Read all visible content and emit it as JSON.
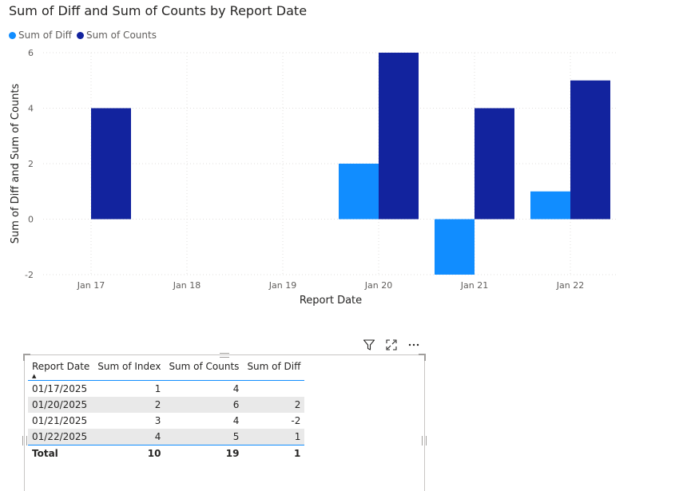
{
  "chart_data": {
    "type": "bar",
    "title": "Sum of Diff and Sum of Counts by Report Date",
    "xlabel": "Report Date",
    "ylabel": "Sum of Diff and Sum of Counts",
    "categories": [
      "Jan 17",
      "Jan 18",
      "Jan 19",
      "Jan 20",
      "Jan 21",
      "Jan 22"
    ],
    "series": [
      {
        "name": "Sum of Diff",
        "color": "#118dff",
        "values": [
          null,
          null,
          null,
          2,
          -2,
          1
        ]
      },
      {
        "name": "Sum of Counts",
        "color": "#12239e",
        "values": [
          4,
          null,
          null,
          6,
          4,
          5
        ]
      }
    ],
    "yticks": [
      "6",
      "4",
      "2",
      "0",
      "-2"
    ],
    "ylim": [
      -2,
      6
    ],
    "grid": true,
    "legend": "top-left"
  },
  "table": {
    "columns": [
      "Report Date",
      "Sum of Index",
      "Sum of Counts",
      "Sum of Diff"
    ],
    "rows": [
      [
        "01/17/2025",
        "1",
        "4",
        ""
      ],
      [
        "01/20/2025",
        "2",
        "6",
        "2"
      ],
      [
        "01/21/2025",
        "3",
        "4",
        "-2"
      ],
      [
        "01/22/2025",
        "4",
        "5",
        "1"
      ]
    ],
    "total": [
      "Total",
      "10",
      "19",
      "1"
    ],
    "sort_indicator": "▲"
  },
  "visual_header": {
    "icons": [
      "filter-icon",
      "focus-mode-icon",
      "more-options-icon"
    ]
  }
}
